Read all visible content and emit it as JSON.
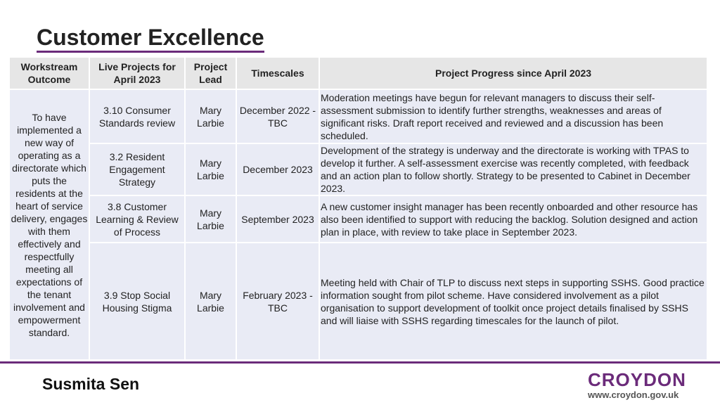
{
  "title": "Customer Excellence",
  "table": {
    "headers": {
      "outcome": "Workstream Outcome",
      "projects": "Live Projects for April 2023",
      "lead": "Project Lead",
      "timescales": "Timescales",
      "progress": "Project Progress since April 2023"
    },
    "outcome": "To have implemented a new way of operating as a directorate which puts the residents at the heart of service delivery, engages with them effectively and respectfully meeting all expectations of the tenant involvement and empowerment standard.",
    "rows": [
      {
        "project": "3.10 Consumer Standards review",
        "lead": "Mary Larbie",
        "timescale": "December 2022 - TBC",
        "progress": "Moderation meetings have begun for relevant managers to discuss their self-assessment submission to identify further strengths, weaknesses and areas of significant risks. Draft report received and reviewed and a discussion has been scheduled."
      },
      {
        "project": "3.2 Resident Engagement Strategy",
        "lead": "Mary Larbie",
        "timescale": "December 2023",
        "progress": "Development of the strategy is underway and the directorate is working with TPAS to develop it further. A self-assessment exercise was recently completed, with feedback and an action plan to follow shortly. Strategy to be presented to Cabinet in December 2023."
      },
      {
        "project": "3.8 Customer Learning & Review of Process",
        "lead": "Mary Larbie",
        "timescale": "September 2023",
        "progress": " A new customer insight manager has been recently onboarded and other resource has also been identified to support with reducing the backlog. Solution designed and action plan in place, with review to take place in September 2023."
      },
      {
        "project": "3.9 Stop Social Housing Stigma",
        "lead": "Mary Larbie",
        "timescale": "February 2023 - TBC",
        "progress": "Meeting held with Chair of TLP to discuss next steps in supporting SSHS. Good practice information sought from pilot scheme. Have considered involvement as a pilot organisation to support development of toolkit once project details finalised by SSHS and will liaise with SSHS regarding timescales for the launch of pilot."
      }
    ]
  },
  "footer": {
    "author": "Susmita Sen",
    "logo_word": "CROYDON",
    "logo_url": "www.croydon.gov.uk"
  },
  "colors": {
    "accent": "#6b2b7a",
    "header_bg": "#e6e6e6",
    "cell_bg": "#e9ebf5"
  }
}
